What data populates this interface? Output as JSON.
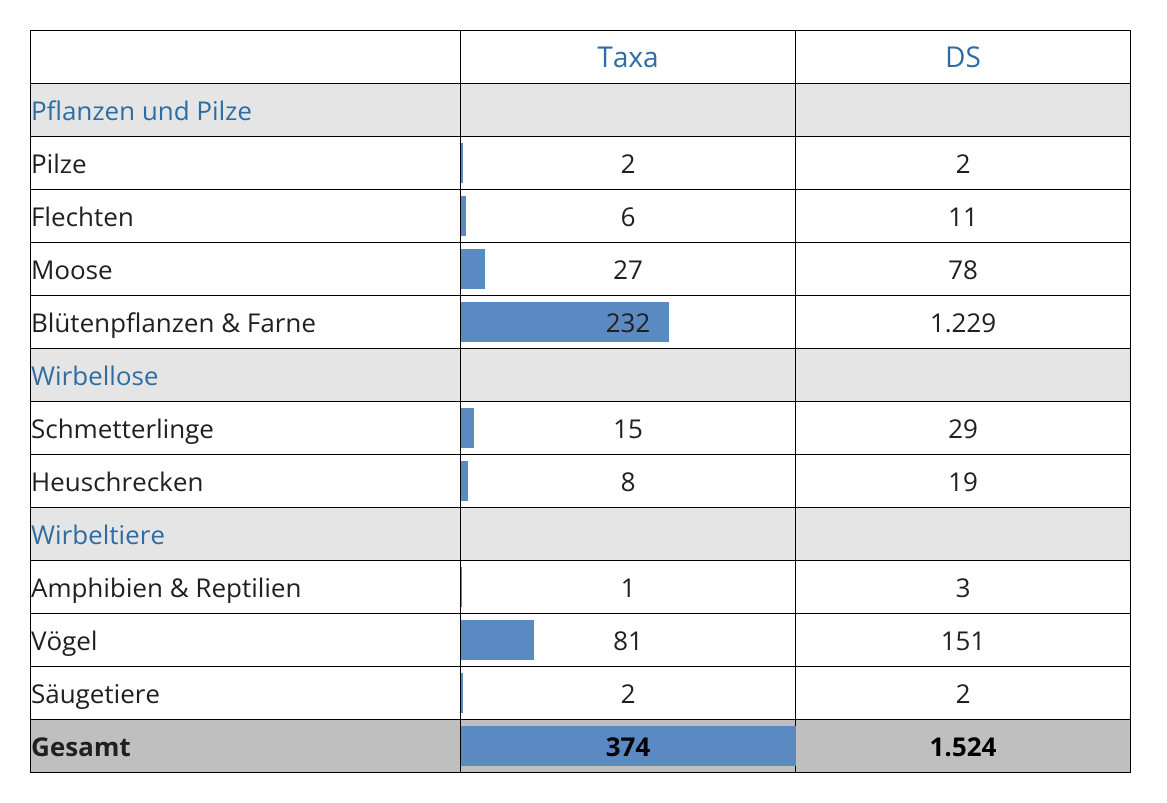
{
  "table": {
    "type": "table",
    "columns": {
      "taxa": "Taxa",
      "ds": "DS"
    },
    "header_color": "#2e6da4",
    "group_bg": "#e5e5e5",
    "total_bg": "#bfbfbf",
    "bar_color": "#5b89c2",
    "border_color": "#000000",
    "text_color": "#202020",
    "font_size_header": 28,
    "font_size_body": 26,
    "bar_max_taxa": 374,
    "groups": [
      {
        "label": "Pflanzen und Pilze",
        "items": [
          {
            "label": "Pilze",
            "taxa": 2,
            "taxa_display": "2",
            "ds": "2"
          },
          {
            "label": "Flechten",
            "taxa": 6,
            "taxa_display": "6",
            "ds": "11"
          },
          {
            "label": "Moose",
            "taxa": 27,
            "taxa_display": "27",
            "ds": "78"
          },
          {
            "label": "Blütenpflanzen & Farne",
            "taxa": 232,
            "taxa_display": "232",
            "ds": "1.229"
          }
        ]
      },
      {
        "label": "Wirbellose",
        "items": [
          {
            "label": "Schmetterlinge",
            "taxa": 15,
            "taxa_display": "15",
            "ds": "29"
          },
          {
            "label": "Heuschrecken",
            "taxa": 8,
            "taxa_display": "8",
            "ds": "19"
          }
        ]
      },
      {
        "label": "Wirbeltiere",
        "items": [
          {
            "label": "Amphibien & Reptilien",
            "taxa": 1,
            "taxa_display": "1",
            "ds": "3"
          },
          {
            "label": "Vögel",
            "taxa": 81,
            "taxa_display": "81",
            "ds": "151"
          },
          {
            "label": "Säugetiere",
            "taxa": 2,
            "taxa_display": "2",
            "ds": "2"
          }
        ]
      }
    ],
    "total": {
      "label": "Gesamt",
      "taxa": 374,
      "taxa_display": "374",
      "ds": "1.524"
    }
  }
}
